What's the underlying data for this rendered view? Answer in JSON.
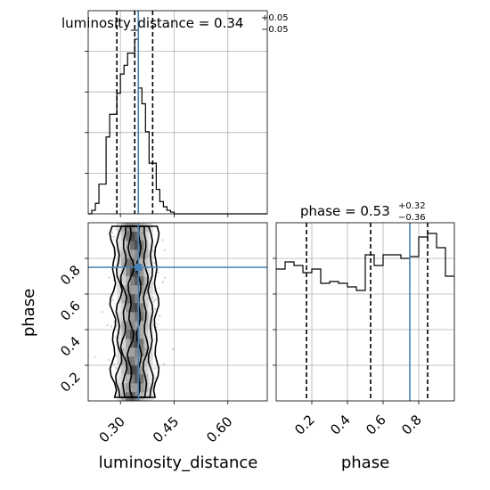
{
  "chart_data": {
    "type": "corner",
    "parameters": [
      "luminosity_distance",
      "phase"
    ],
    "truths": {
      "luminosity_distance": 0.35,
      "phase": 0.75
    },
    "panels": {
      "luminosity_distance_hist": {
        "title_prefix": "luminosity_distance = ",
        "median_text": "0.34",
        "upper_err_text": "+0.05",
        "lower_err_text": "−0.05",
        "median": 0.34,
        "quantiles": [
          0.29,
          0.34,
          0.39
        ],
        "truth": 0.35,
        "xlim": [
          0.21,
          0.71
        ],
        "ylim": [
          0,
          1.0
        ],
        "bin_edges": [
          0.21,
          0.22,
          0.23,
          0.24,
          0.25,
          0.26,
          0.27,
          0.28,
          0.29,
          0.3,
          0.31,
          0.32,
          0.33,
          0.34,
          0.35,
          0.36,
          0.37,
          0.38,
          0.39,
          0.4,
          0.41,
          0.42,
          0.43,
          0.44,
          0.45,
          0.46,
          0.47,
          0.48,
          0.49,
          0.5,
          0.51
        ],
        "counts": [
          0.0,
          0.02,
          0.06,
          0.17,
          0.17,
          0.44,
          0.57,
          0.57,
          0.69,
          0.8,
          0.85,
          0.92,
          0.92,
          1.0,
          0.72,
          0.63,
          0.47,
          0.29,
          0.29,
          0.14,
          0.07,
          0.04,
          0.02,
          0.01,
          0.0,
          0.0,
          0.0,
          0.0,
          0.0,
          0.0
        ],
        "xticks": [
          0.3,
          0.45,
          0.6
        ],
        "xtick_labels": [
          "0.30",
          "0.45",
          "0.60"
        ],
        "y_major_ticks": [
          0.2,
          0.4,
          0.6,
          0.8
        ]
      },
      "phase_hist": {
        "title_prefix": "phase = ",
        "median_text": "0.53",
        "upper_err_text": "+0.32",
        "lower_err_text": "−0.36",
        "median": 0.53,
        "quantiles": [
          0.17,
          0.53,
          0.85
        ],
        "truth": 0.75,
        "xlim": [
          0.0,
          1.0
        ],
        "ylim": [
          0,
          1.0
        ],
        "bin_edges": [
          0.0,
          0.05,
          0.1,
          0.15,
          0.2,
          0.25,
          0.3,
          0.35,
          0.4,
          0.45,
          0.5,
          0.55,
          0.6,
          0.65,
          0.7,
          0.75,
          0.8,
          0.85,
          0.9,
          0.95,
          1.0
        ],
        "counts": [
          0.74,
          0.78,
          0.76,
          0.72,
          0.74,
          0.66,
          0.67,
          0.66,
          0.64,
          0.62,
          0.82,
          0.76,
          0.82,
          0.82,
          0.8,
          0.81,
          0.92,
          0.94,
          0.86,
          0.7
        ],
        "xticks": [
          0.2,
          0.4,
          0.6,
          0.8
        ],
        "xtick_labels": [
          "0.2",
          "0.4",
          "0.6",
          "0.8"
        ],
        "y_major_ticks": [
          0.2,
          0.4,
          0.6,
          0.8
        ]
      },
      "joint": {
        "xlim": [
          0.21,
          0.71
        ],
        "ylim": [
          0.0,
          1.0
        ],
        "xticks": [
          0.3,
          0.45,
          0.6
        ],
        "xtick_labels": [
          "0.30",
          "0.45",
          "0.60"
        ],
        "yticks": [
          0.2,
          0.4,
          0.6,
          0.8
        ],
        "ytick_labels": [
          "0.2",
          "0.4",
          "0.6",
          "0.8"
        ],
        "truth_point": [
          0.35,
          0.75
        ],
        "sample_x_center": 0.34,
        "sample_x_width": 0.05,
        "contour_levels_x_halfwidth": [
          0.06,
          0.045,
          0.03,
          0.012
        ]
      }
    },
    "xlabels": [
      "luminosity_distance",
      "phase"
    ],
    "ylabel": "phase",
    "colors": {
      "truth": "#4682b4",
      "hist": "#000000",
      "contour": "#000000",
      "grid": "#b0b0b0"
    }
  }
}
